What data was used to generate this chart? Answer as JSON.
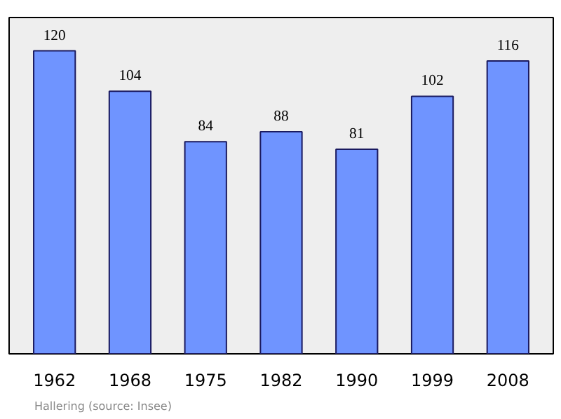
{
  "chart_data": {
    "type": "bar",
    "categories": [
      "1962",
      "1968",
      "1975",
      "1982",
      "1990",
      "1999",
      "2008"
    ],
    "values": [
      120,
      104,
      84,
      88,
      81,
      102,
      116
    ],
    "color": "#6f94ff",
    "data_labels": true,
    "grid": false,
    "tick_labels": "x",
    "annotations": [
      "Hallering    (source: Insee)"
    ]
  }
}
